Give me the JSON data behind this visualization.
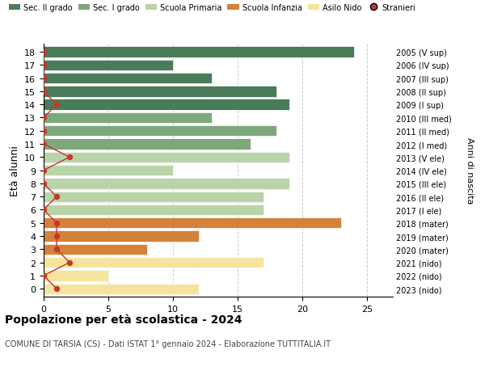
{
  "ages": [
    18,
    17,
    16,
    15,
    14,
    13,
    12,
    11,
    10,
    9,
    8,
    7,
    6,
    5,
    4,
    3,
    2,
    1,
    0
  ],
  "years": [
    "2005 (V sup)",
    "2006 (IV sup)",
    "2007 (III sup)",
    "2008 (II sup)",
    "2009 (I sup)",
    "2010 (III med)",
    "2011 (II med)",
    "2012 (I med)",
    "2013 (V ele)",
    "2014 (IV ele)",
    "2015 (III ele)",
    "2016 (II ele)",
    "2017 (I ele)",
    "2018 (mater)",
    "2019 (mater)",
    "2020 (mater)",
    "2021 (nido)",
    "2022 (nido)",
    "2023 (nido)"
  ],
  "bar_values": [
    24,
    10,
    13,
    18,
    19,
    13,
    18,
    16,
    19,
    10,
    19,
    17,
    17,
    23,
    12,
    8,
    17,
    5,
    12
  ],
  "bar_colors": [
    "#4a7c59",
    "#4a7c59",
    "#4a7c59",
    "#4a7c59",
    "#4a7c59",
    "#7da87b",
    "#7da87b",
    "#7da87b",
    "#b8d4a8",
    "#b8d4a8",
    "#b8d4a8",
    "#b8d4a8",
    "#b8d4a8",
    "#d4823a",
    "#d4823a",
    "#d4823a",
    "#f5e4a0",
    "#f5e4a0",
    "#f5e4a0"
  ],
  "stranieri_values": [
    0,
    0,
    0,
    0,
    1,
    0,
    0,
    0,
    2,
    0,
    0,
    1,
    0,
    1,
    1,
    1,
    2,
    0,
    1
  ],
  "legend_labels": [
    "Sec. II grado",
    "Sec. I grado",
    "Scuola Primaria",
    "Scuola Infanzia",
    "Asilo Nido",
    "Stranieri"
  ],
  "legend_colors": [
    "#4a7c59",
    "#7da87b",
    "#b8d4a8",
    "#d4823a",
    "#f5e4a0",
    "#c0392b"
  ],
  "title": "Popolazione per età scolastica - 2024",
  "subtitle": "COMUNE DI TARSIA (CS) - Dati ISTAT 1° gennaio 2024 - Elaborazione TUTTITALIA.IT",
  "ylabel": "Età alunni",
  "right_ylabel": "Anni di nascita",
  "xlim": [
    0,
    27
  ],
  "xticks": [
    0,
    5,
    10,
    15,
    20,
    25
  ],
  "background_color": "#ffffff",
  "grid_color": "#cccccc",
  "stranieri_color": "#c0392b",
  "bar_height": 0.82
}
